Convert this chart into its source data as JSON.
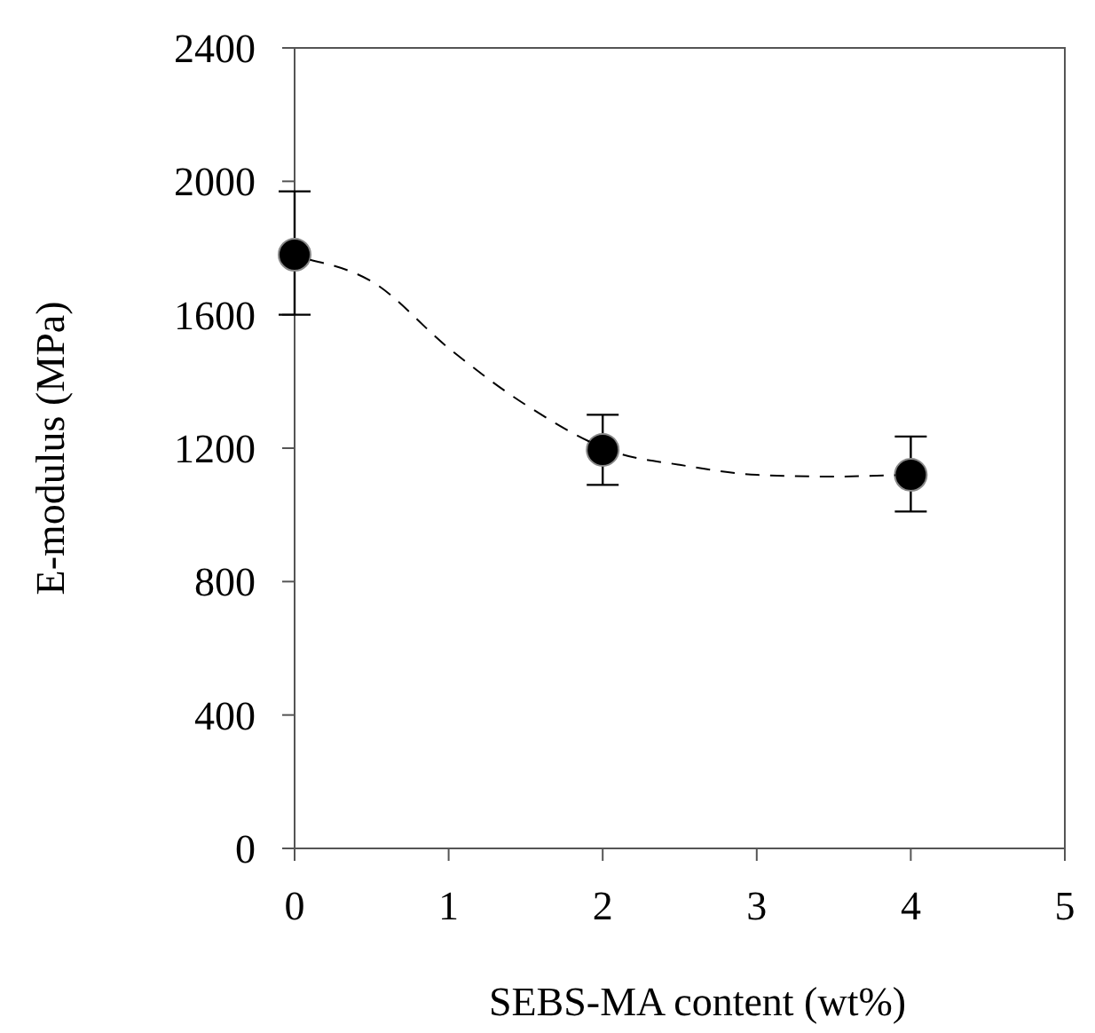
{
  "chart_data": {
    "type": "scatter",
    "xlabel": "SEBS-MA content (wt%)",
    "ylabel": "E-modulus (MPa)",
    "xlim": [
      0,
      5
    ],
    "xticks": [
      0,
      1,
      2,
      3,
      4,
      5
    ],
    "ylim": [
      0,
      2400
    ],
    "yticks": [
      0,
      400,
      800,
      1200,
      1600,
      2000,
      2400
    ],
    "grid": false,
    "series": [
      {
        "color": "#000000",
        "marker": "circle",
        "x": [
          0,
          2,
          4
        ],
        "values": [
          1780,
          1195,
          1120
        ],
        "errors": [
          [
            1600,
            1970
          ],
          105,
          [
            1010,
            1235
          ]
        ]
      },
      {
        "type": "line",
        "color": "#000000",
        "marker": "none",
        "line_style": "dashed",
        "x": [
          0.1,
          0.5,
          1,
          1.5,
          2.1,
          2.5,
          3,
          3.5,
          3.9
        ],
        "values": [
          1765,
          1700,
          1500,
          1330,
          1185,
          1150,
          1120,
          1115,
          1119
        ]
      }
    ]
  }
}
